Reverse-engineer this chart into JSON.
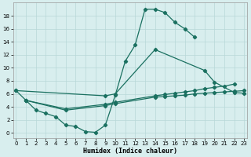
{
  "xlabel": "Humidex (Indice chaleur)",
  "bg_color": "#d8eeee",
  "grid_color": "#b8d8d8",
  "line_color": "#1a7060",
  "s1_x": [
    0,
    1,
    2,
    3,
    4,
    5,
    6,
    7,
    8,
    9,
    10,
    11,
    12,
    13,
    14,
    15,
    16,
    17,
    18
  ],
  "s1_y": [
    6.5,
    5.0,
    3.5,
    3.0,
    2.5,
    1.2,
    1.0,
    0.2,
    0.1,
    1.2,
    5.8,
    11.0,
    13.5,
    19.0,
    19.0,
    18.5,
    17.0,
    16.0,
    14.7
  ],
  "s2_x": [
    0,
    9,
    10,
    14,
    19,
    20,
    22,
    23
  ],
  "s2_y": [
    6.5,
    5.7,
    6.0,
    12.8,
    9.6,
    7.8,
    6.2,
    6.1
  ],
  "s3_x": [
    1,
    5,
    9,
    10,
    14,
    15,
    16,
    17,
    18,
    19,
    20,
    21,
    22
  ],
  "s3_y": [
    5.0,
    3.7,
    4.4,
    4.7,
    5.7,
    5.9,
    6.1,
    6.3,
    6.5,
    6.8,
    7.0,
    7.2,
    7.5
  ],
  "s4_x": [
    1,
    5,
    9,
    10,
    14,
    15,
    16,
    17,
    18,
    19,
    20,
    21,
    22,
    23
  ],
  "s4_y": [
    5.0,
    3.5,
    4.2,
    4.5,
    5.5,
    5.6,
    5.7,
    5.8,
    6.0,
    6.1,
    6.2,
    6.3,
    6.4,
    6.5
  ],
  "xlim": [
    -0.3,
    23.3
  ],
  "ylim": [
    -0.8,
    20
  ],
  "yticks": [
    0,
    2,
    4,
    6,
    8,
    10,
    12,
    14,
    16,
    18
  ],
  "xticks": [
    0,
    1,
    2,
    3,
    4,
    5,
    6,
    7,
    8,
    9,
    10,
    11,
    12,
    13,
    14,
    15,
    16,
    17,
    18,
    19,
    20,
    21,
    22,
    23
  ]
}
